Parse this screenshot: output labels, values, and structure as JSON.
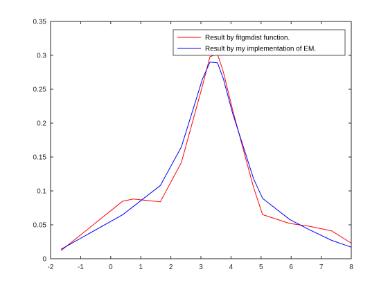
{
  "chart_data": {
    "type": "line",
    "title": "",
    "xlabel": "",
    "ylabel": "",
    "xlim": [
      -2,
      8
    ],
    "ylim": [
      0,
      0.35
    ],
    "xticks": [
      -2,
      -1,
      0,
      1,
      2,
      3,
      4,
      5,
      6,
      7,
      8
    ],
    "xtick_labels": [
      "-2",
      "-1",
      "0",
      "1",
      "2",
      "3",
      "4",
      "5",
      "6",
      "7",
      "8"
    ],
    "yticks": [
      0,
      0.05,
      0.1,
      0.15,
      0.2,
      0.25,
      0.3,
      0.35
    ],
    "ytick_labels": [
      "0",
      "0.05",
      "0.1",
      "0.15",
      "0.2",
      "0.25",
      "0.3",
      "0.35"
    ],
    "grid": false,
    "legend_position": "top-right",
    "series": [
      {
        "name": "Result by fitgmdist function.",
        "color": "#ff0000",
        "x": [
          -1.65,
          0.4,
          0.75,
          1.65,
          2.35,
          3.05,
          3.3,
          3.55,
          3.75,
          4.05,
          4.75,
          5.05,
          5.95,
          6.6,
          7.35,
          8.0
        ],
        "y": [
          0.012,
          0.085,
          0.088,
          0.084,
          0.142,
          0.255,
          0.298,
          0.302,
          0.275,
          0.22,
          0.105,
          0.065,
          0.052,
          0.048,
          0.041,
          0.023
        ]
      },
      {
        "name": "Result by my implementation of EM.",
        "color": "#0000ff",
        "x": [
          -1.65,
          0.4,
          1.65,
          2.35,
          3.05,
          3.3,
          3.55,
          3.75,
          4.05,
          4.75,
          5.05,
          5.95,
          6.6,
          7.35,
          8.0
        ],
        "y": [
          0.014,
          0.065,
          0.108,
          0.165,
          0.265,
          0.29,
          0.289,
          0.265,
          0.215,
          0.118,
          0.089,
          0.058,
          0.043,
          0.027,
          0.017
        ]
      }
    ]
  }
}
